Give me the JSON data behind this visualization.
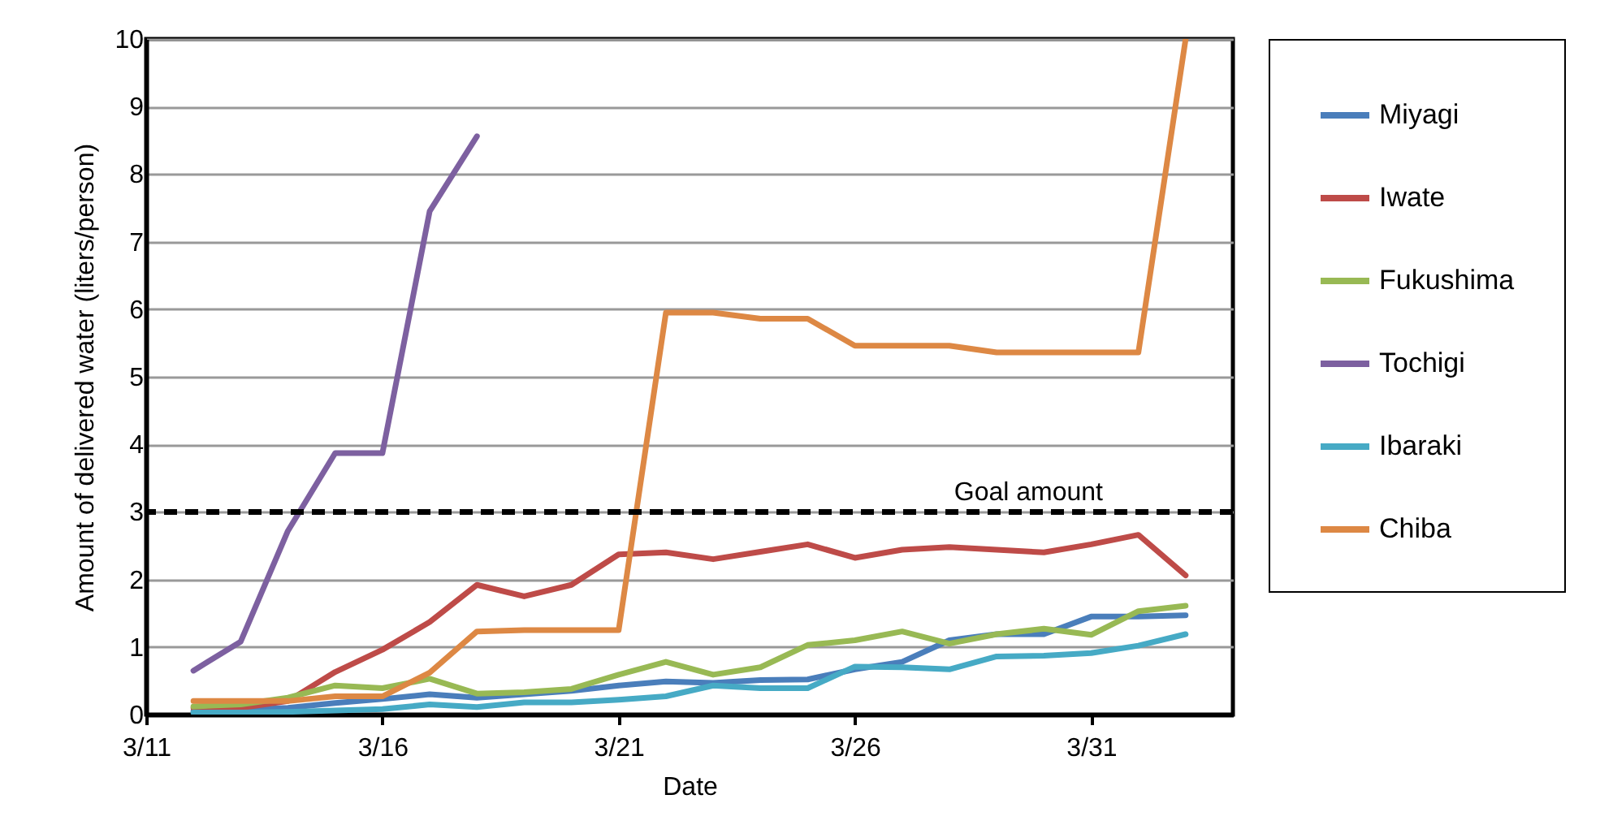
{
  "chart_data": {
    "type": "line",
    "xlabel": "Date",
    "ylabel": "Amount of delivered water (liters/person)",
    "x": [
      "--03-12",
      "--03-13",
      "--03-14",
      "--03-15",
      "--03-16",
      "--03-17",
      "--03-18",
      "--03-19",
      "--03-20",
      "--03-21",
      "--03-22",
      "--03-23",
      "--03-24",
      "--03-25",
      "--03-26",
      "--03-27",
      "--03-28",
      "--03-29",
      "--03-30",
      "--03-31",
      "--04-01",
      "--04-02"
    ],
    "series": [
      {
        "name": "Miyagi",
        "color": "#4a7ebb",
        "values": [
          0.05,
          0.07,
          0.1,
          0.17,
          0.23,
          0.3,
          0.25,
          0.3,
          0.35,
          0.43,
          0.49,
          0.47,
          0.51,
          0.52,
          0.67,
          0.78,
          1.1,
          1.19,
          1.19,
          1.45,
          1.45,
          1.47
        ]
      },
      {
        "name": "Iwate",
        "color": "#be4b48",
        "values": [
          0.1,
          0.1,
          0.2,
          0.63,
          0.96,
          1.37,
          1.92,
          1.75,
          1.92,
          2.37,
          2.4,
          2.3,
          2.41,
          2.52,
          2.32,
          2.44,
          2.48,
          2.44,
          2.4,
          2.52,
          2.66,
          2.06
        ]
      },
      {
        "name": "Fukushima",
        "color": "#98b954",
        "values": [
          0.12,
          0.15,
          0.25,
          0.43,
          0.39,
          0.53,
          0.31,
          0.33,
          0.38,
          0.59,
          0.78,
          0.59,
          0.7,
          1.03,
          1.1,
          1.23,
          1.05,
          1.19,
          1.27,
          1.18,
          1.53,
          1.61
        ]
      },
      {
        "name": "Tochigi",
        "color": "#7d60a0",
        "values": [
          0.65,
          1.08,
          2.72,
          3.87,
          3.87,
          7.45,
          8.56,
          null,
          null,
          null,
          null,
          null,
          null,
          null,
          null,
          null,
          null,
          null,
          null,
          null,
          null,
          null
        ]
      },
      {
        "name": "Ibaraki",
        "color": "#46aac5",
        "values": [
          0.03,
          0.03,
          0.04,
          0.06,
          0.08,
          0.15,
          0.11,
          0.18,
          0.18,
          0.22,
          0.27,
          0.43,
          0.39,
          0.39,
          0.71,
          0.7,
          0.67,
          0.86,
          0.87,
          0.91,
          1.02,
          1.19
        ]
      },
      {
        "name": "Chiba",
        "color": "#dd8844",
        "values": [
          0.2,
          0.2,
          0.2,
          0.27,
          0.27,
          0.62,
          1.23,
          1.25,
          1.25,
          1.25,
          5.95,
          5.95,
          5.86,
          5.86,
          5.46,
          5.46,
          5.46,
          5.36,
          5.36,
          5.36,
          5.36,
          10
        ]
      }
    ],
    "xlim": [
      "--03-11",
      "--04-03"
    ],
    "xticks": [
      {
        "value": "--03-11",
        "label": "3/11"
      },
      {
        "value": "--03-16",
        "label": "3/16"
      },
      {
        "value": "--03-21",
        "label": "3/21"
      },
      {
        "value": "--03-26",
        "label": "3/26"
      },
      {
        "value": "--03-31",
        "label": "3/31"
      }
    ],
    "ylim": [
      0,
      10
    ],
    "yticks": [
      0,
      1,
      2,
      3,
      4,
      5,
      6,
      7,
      8,
      9,
      10
    ],
    "ref_lines": [
      {
        "axis": "y",
        "value": 3,
        "label": "Goal amount",
        "color": "#000000",
        "line_style": "dashed"
      }
    ],
    "grid": "y",
    "legend": "right",
    "line_style": "solid",
    "marker": "none"
  }
}
